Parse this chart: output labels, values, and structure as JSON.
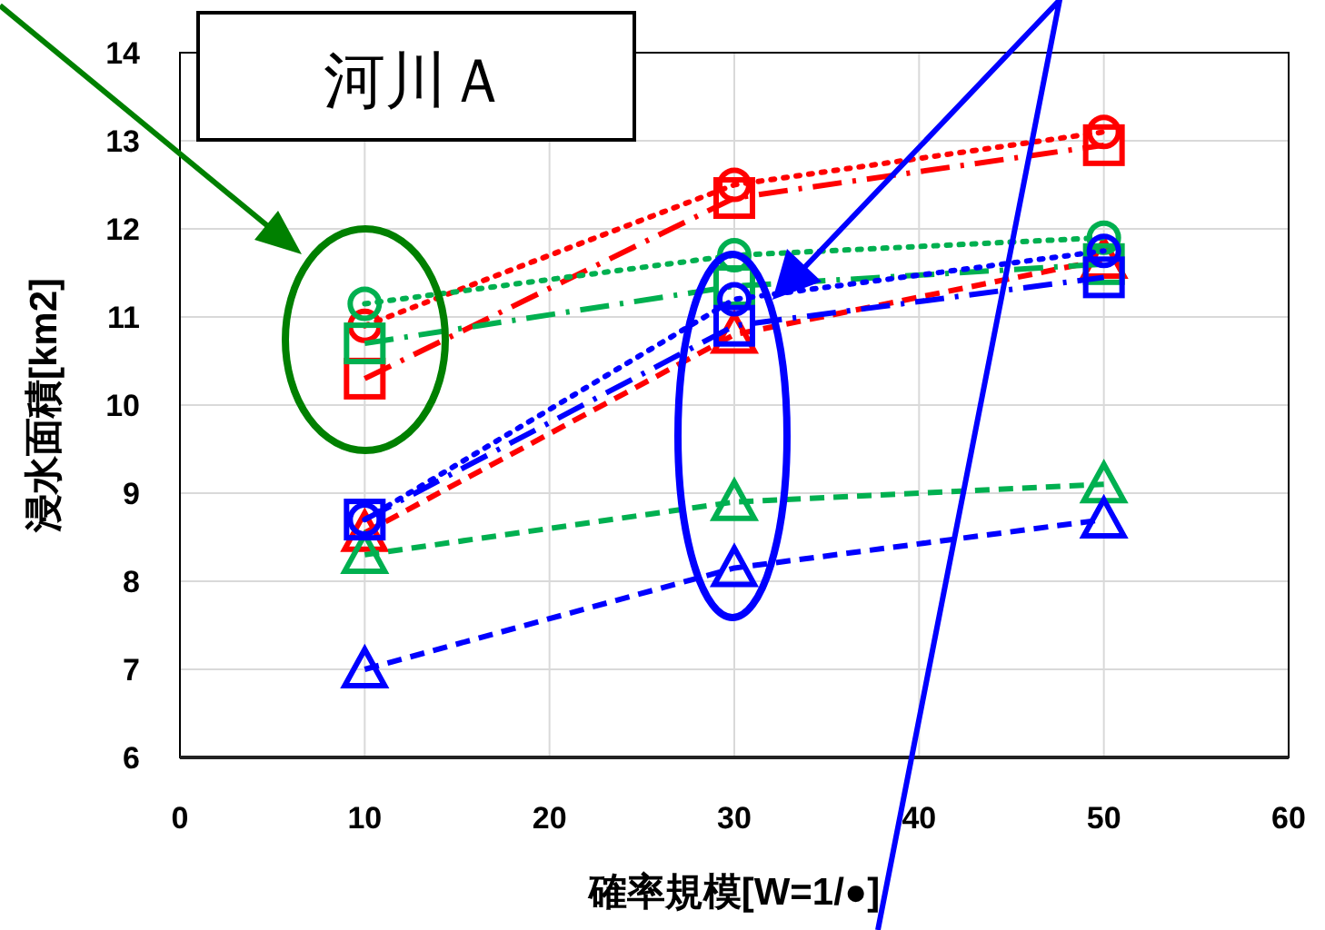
{
  "chart_data": {
    "type": "line",
    "title": "河川Ａ",
    "xlabel": "確率規模[W=1/●]",
    "ylabel": "浸水面積[km2]",
    "xlim": [
      0,
      60
    ],
    "xticks": [
      0,
      10,
      20,
      30,
      40,
      50,
      60
    ],
    "ylim": [
      6,
      14
    ],
    "yticks": [
      6,
      7,
      8,
      9,
      10,
      11,
      12,
      13,
      14
    ],
    "grid": true,
    "x": [
      10,
      30,
      50
    ],
    "series": [
      {
        "color": "#ff0000",
        "marker": "circle",
        "line_style": "dotted",
        "values": [
          10.9,
          12.5,
          13.1
        ]
      },
      {
        "color": "#ff0000",
        "marker": "square",
        "line_style": "dashdot",
        "values": [
          10.3,
          12.35,
          12.95
        ]
      },
      {
        "color": "#ff0000",
        "marker": "triangle",
        "line_style": "dashed",
        "values": [
          8.55,
          10.8,
          11.65
        ]
      },
      {
        "color": "#00b050",
        "marker": "circle",
        "line_style": "dotted",
        "values": [
          11.15,
          11.7,
          11.9
        ]
      },
      {
        "color": "#00b050",
        "marker": "square",
        "line_style": "dashdot",
        "values": [
          10.7,
          11.35,
          11.6
        ]
      },
      {
        "color": "#00b050",
        "marker": "triangle",
        "line_style": "dashed",
        "values": [
          8.3,
          8.9,
          9.1
        ]
      },
      {
        "color": "#0000ff",
        "marker": "circle",
        "line_style": "dotted",
        "values": [
          8.7,
          11.2,
          11.75
        ]
      },
      {
        "color": "#0000ff",
        "marker": "square",
        "line_style": "dashdot",
        "values": [
          8.7,
          10.9,
          11.45
        ]
      },
      {
        "color": "#0000ff",
        "marker": "triangle",
        "line_style": "dashed",
        "values": [
          7.0,
          8.15,
          8.7
        ]
      }
    ]
  }
}
